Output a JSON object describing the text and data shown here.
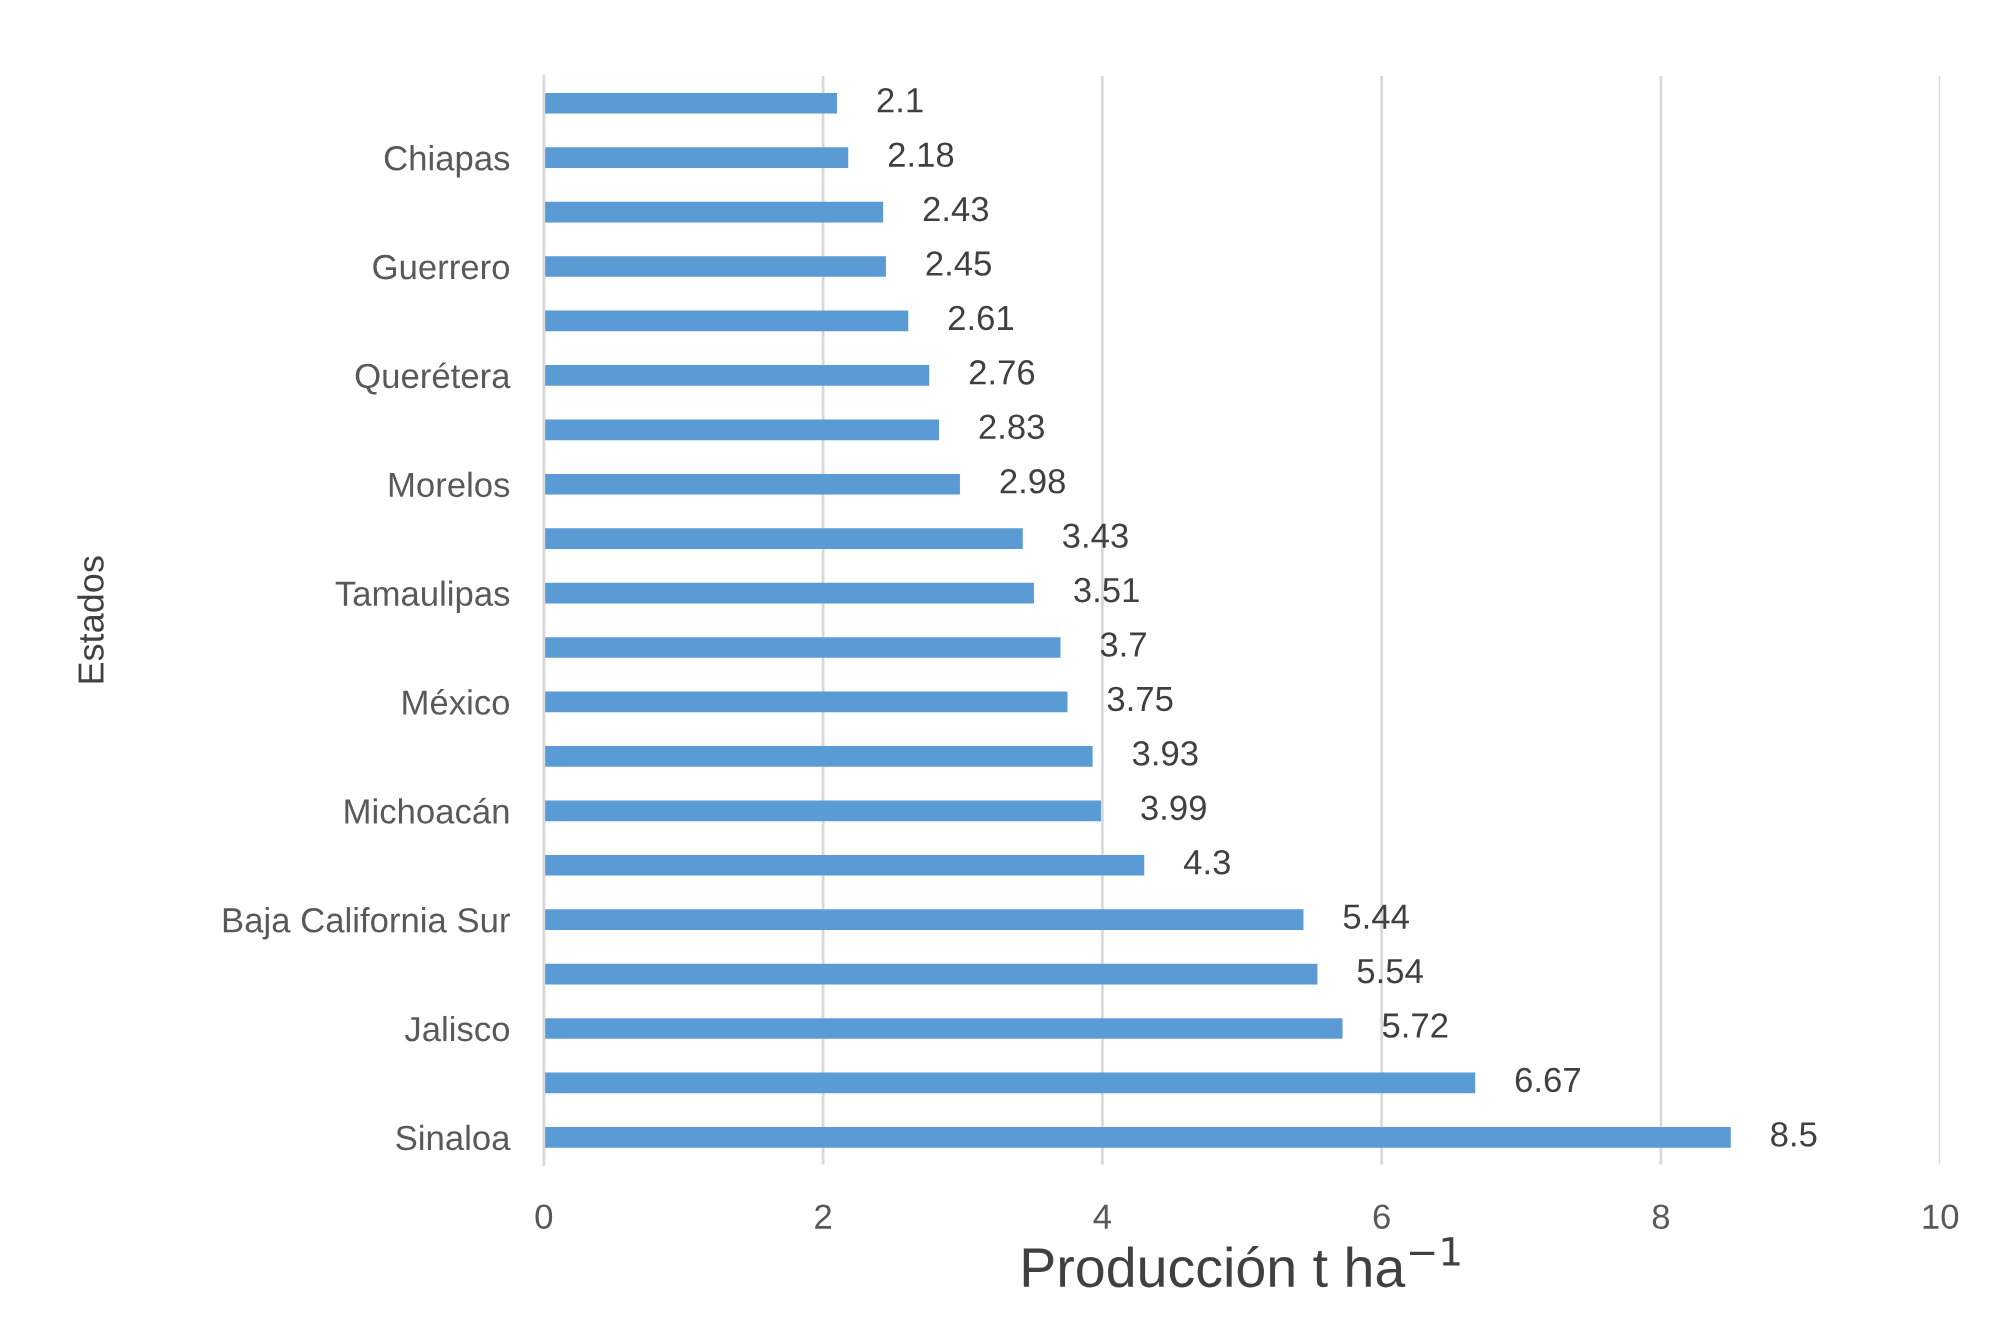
{
  "chart_data": {
    "type": "bar",
    "orientation": "horizontal",
    "xlabel": "Producción t ha$^{−1}$",
    "ylabel": "Estados",
    "categories": [
      null,
      "Chiapas",
      null,
      "Guerrero",
      null,
      "Querétera",
      null,
      "Morelos",
      null,
      "Tamaulipas",
      null,
      "México",
      null,
      "Michoacán",
      null,
      "Baja California Sur",
      null,
      "Jalisco",
      null,
      "Sinaloa"
    ],
    "values": [
      2.1,
      2.18,
      2.43,
      2.45,
      2.61,
      2.76,
      2.83,
      2.98,
      3.43,
      3.51,
      3.7,
      3.75,
      3.93,
      3.99,
      4.3,
      5.44,
      5.54,
      5.72,
      6.67,
      8.5
    ],
    "color": "#5b9bd5",
    "xlim": [
      0,
      10
    ],
    "xticks": [
      0,
      2,
      4,
      6,
      8,
      10
    ],
    "grid": "x",
    "data_labels": true
  }
}
